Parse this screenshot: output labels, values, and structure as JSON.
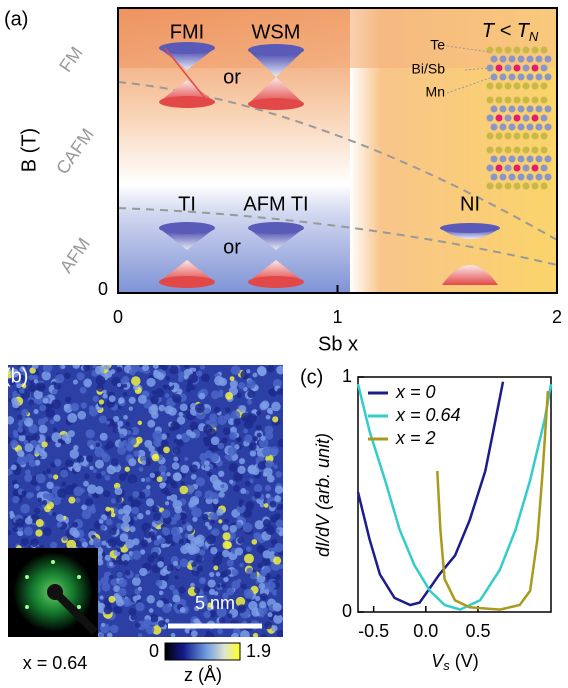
{
  "chart_data": [
    {
      "type": "phase-diagram",
      "panel_label": "(a)",
      "xlabel": "Sb x",
      "ylabel": "B (T)",
      "xlim": [
        0,
        2
      ],
      "xticks": [
        0,
        1,
        2
      ],
      "yticks": [
        0
      ],
      "regions": [
        "FM",
        "CAFM",
        "AFM"
      ],
      "phases": [
        "FMI",
        "WSM",
        "TI",
        "AFM TI",
        "NI"
      ],
      "connector": "or",
      "condition": [
        "T < T",
        "N"
      ],
      "atom_labels": [
        "Te",
        "Bi/Sb",
        "Mn"
      ]
    },
    {
      "type": "image",
      "panel_label": "(b)",
      "scale_bar": "5 nm",
      "annotation": "x = 0.64",
      "colorbar": {
        "label": "z (Å)",
        "lim": [
          0,
          1.9
        ],
        "ticks": [
          0,
          1.9
        ]
      }
    },
    {
      "type": "line",
      "panel_label": "(c)",
      "xlabel": [
        "V",
        "s",
        " (V)"
      ],
      "ylabel": "dI/dV (arb. unit)",
      "xlim": [
        -0.65,
        1.2
      ],
      "xticks": [
        -0.5,
        {
          "value": 0,
          "label": "0.0"
        },
        0.5
      ],
      "ylim": [
        0,
        1
      ],
      "yticks": [
        0,
        1
      ],
      "series": [
        {
          "name": "x = 0",
          "color": "#1c1c8f",
          "x": [
            -0.65,
            -0.54,
            -0.44,
            -0.3,
            -0.15,
            -0.06,
            0.02,
            0.13,
            0.28,
            0.42,
            0.57,
            0.66,
            0.74
          ],
          "values": [
            0.51,
            0.31,
            0.16,
            0.06,
            0.03,
            0.04,
            0.09,
            0.16,
            0.24,
            0.39,
            0.6,
            0.8,
            0.98
          ]
        },
        {
          "name": "x = 0.64",
          "color": "#33cccc",
          "x": [
            -0.65,
            -0.54,
            -0.39,
            -0.25,
            -0.11,
            0.04,
            0.18,
            0.33,
            0.52,
            0.71,
            0.86,
            1.0,
            1.14,
            1.2
          ],
          "values": [
            0.97,
            0.77,
            0.56,
            0.35,
            0.2,
            0.09,
            0.03,
            0.01,
            0.05,
            0.18,
            0.35,
            0.56,
            0.82,
            0.97
          ]
        },
        {
          "name": "x = 2",
          "color": "#a99a1e",
          "x": [
            0.11,
            0.14,
            0.18,
            0.28,
            0.42,
            0.71,
            0.9,
            1.0,
            1.07,
            1.12,
            1.17
          ],
          "values": [
            0.6,
            0.35,
            0.14,
            0.05,
            0.02,
            0.01,
            0.03,
            0.09,
            0.31,
            0.6,
            0.94
          ]
        }
      ]
    }
  ]
}
